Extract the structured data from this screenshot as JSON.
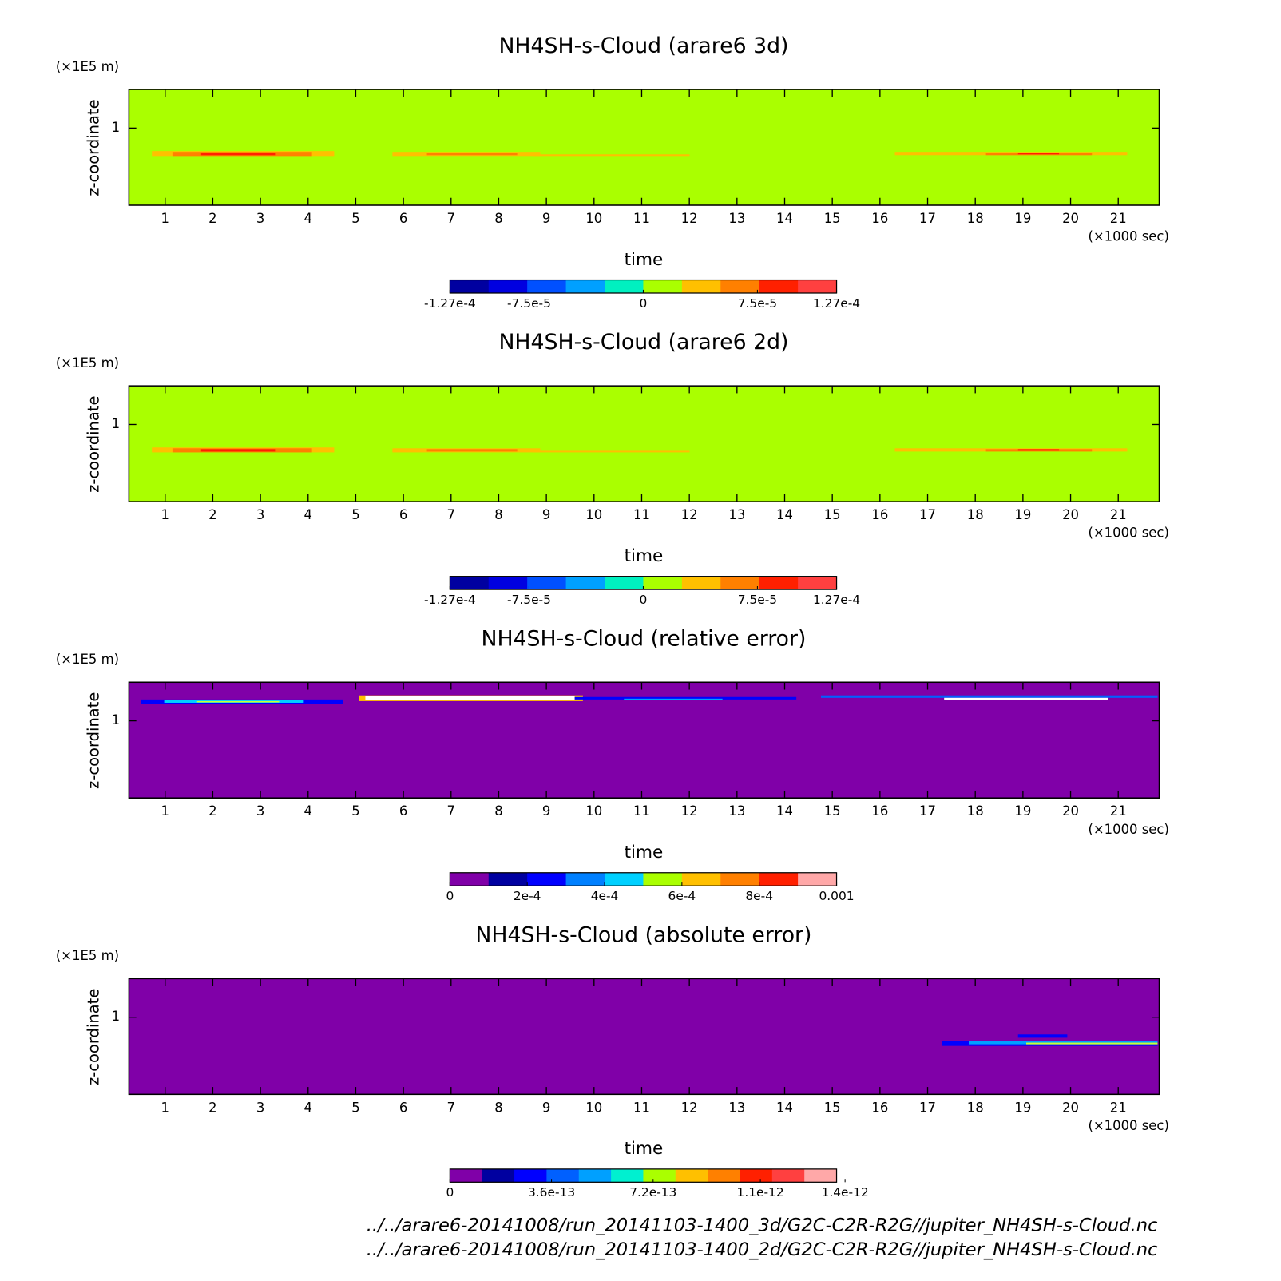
{
  "chart_data": [
    {
      "type": "contour",
      "title": "NH4SH-s-Cloud (arare6 3d)",
      "xlabel": "time",
      "xunit": "(×1000 sec)",
      "ylabel": "z-coordinate",
      "yunit": "(×1E5 m)",
      "xlim": [
        0.24,
        21.86
      ],
      "xticks": [
        1,
        2,
        3,
        4,
        5,
        6,
        7,
        8,
        9,
        10,
        11,
        12,
        13,
        14,
        15,
        16,
        17,
        18,
        19,
        20,
        21
      ],
      "ylim": [
        0.7,
        1.15
      ],
      "yticks": [
        1
      ],
      "field_color": "#aaff00",
      "colorbar": {
        "lim": [
          -0.000127,
          0.000127
        ],
        "ticks": [
          {
            "value": -0.000127,
            "label": "-1.27e-4"
          },
          {
            "value": -7.5e-05,
            "label": "-7.5e-5"
          },
          0,
          {
            "value": 7.5e-05,
            "label": "7.5e-5"
          },
          {
            "value": 0.000127,
            "label": "1.27e-4"
          }
        ],
        "colors": [
          "#0000a0",
          "#0000e0",
          "#0050ff",
          "#00a0ff",
          "#00f0c0",
          "#aaff00",
          "#ffc000",
          "#ff8000",
          "#ff2000",
          "#ff4040"
        ]
      }
    },
    {
      "type": "contour",
      "title": "NH4SH-s-Cloud (arare6 2d)",
      "xlabel": "time",
      "xunit": "(×1000 sec)",
      "ylabel": "z-coordinate",
      "yunit": "(×1E5 m)",
      "xlim": [
        0.24,
        21.86
      ],
      "xticks": [
        1,
        2,
        3,
        4,
        5,
        6,
        7,
        8,
        9,
        10,
        11,
        12,
        13,
        14,
        15,
        16,
        17,
        18,
        19,
        20,
        21
      ],
      "ylim": [
        0.7,
        1.15
      ],
      "yticks": [
        1
      ],
      "field_color": "#aaff00",
      "colorbar": {
        "lim": [
          -0.000127,
          0.000127
        ],
        "ticks": [
          {
            "value": -0.000127,
            "label": "-1.27e-4"
          },
          {
            "value": -7.5e-05,
            "label": "-7.5e-5"
          },
          0,
          {
            "value": 7.5e-05,
            "label": "7.5e-5"
          },
          {
            "value": 0.000127,
            "label": "1.27e-4"
          }
        ],
        "colors": [
          "#0000a0",
          "#0000e0",
          "#0050ff",
          "#00a0ff",
          "#00f0c0",
          "#aaff00",
          "#ffc000",
          "#ff8000",
          "#ff2000",
          "#ff4040"
        ]
      }
    },
    {
      "type": "contour",
      "title": "NH4SH-s-Cloud (relative error)",
      "xlabel": "time",
      "xunit": "(×1000 sec)",
      "ylabel": "z-coordinate",
      "yunit": "(×1E5 m)",
      "xlim": [
        0.24,
        21.86
      ],
      "xticks": [
        1,
        2,
        3,
        4,
        5,
        6,
        7,
        8,
        9,
        10,
        11,
        12,
        13,
        14,
        15,
        16,
        17,
        18,
        19,
        20,
        21
      ],
      "ylim": [
        0.7,
        1.15
      ],
      "yticks": [
        1
      ],
      "field_color": "#8000a8",
      "colorbar": {
        "lim": [
          0,
          0.001
        ],
        "ticks": [
          0,
          {
            "value": 0.0002,
            "label": "2e-4"
          },
          {
            "value": 0.0004,
            "label": "4e-4"
          },
          {
            "value": 0.0006,
            "label": "6e-4"
          },
          {
            "value": 0.0008,
            "label": "8e-4"
          },
          0.001
        ],
        "colors": [
          "#8000a8",
          "#0000a0",
          "#0000ff",
          "#0080ff",
          "#00d0ff",
          "#aaff00",
          "#ffc000",
          "#ff8000",
          "#ff2000",
          "#ffa8a8"
        ]
      }
    },
    {
      "type": "contour",
      "title": "NH4SH-s-Cloud (absolute error)",
      "xlabel": "time",
      "xunit": "(×1000 sec)",
      "ylabel": "z-coordinate",
      "yunit": "(×1E5 m)",
      "xlim": [
        0.24,
        21.86
      ],
      "xticks": [
        1,
        2,
        3,
        4,
        5,
        6,
        7,
        8,
        9,
        10,
        11,
        12,
        13,
        14,
        15,
        16,
        17,
        18,
        19,
        20,
        21
      ],
      "ylim": [
        0.7,
        1.15
      ],
      "yticks": [
        1
      ],
      "field_color": "#8000a8",
      "colorbar": {
        "lim": [
          0,
          1.37e-12
        ],
        "ticks": [
          0,
          {
            "value": 3.6e-13,
            "label": "3.6e-13"
          },
          {
            "value": 7.2e-13,
            "label": "7.2e-13"
          },
          {
            "value": 1.1e-12,
            "label": "1.1e-12"
          },
          {
            "value": 1.4e-12,
            "label": "1.4e-12"
          }
        ],
        "colors": [
          "#8000a8",
          "#0000a0",
          "#0000ff",
          "#0060ff",
          "#00a0ff",
          "#00f0d0",
          "#aaff00",
          "#ffc000",
          "#ff8000",
          "#ff2000",
          "#ff4040",
          "#ffa8a8"
        ]
      }
    }
  ],
  "files": [
    "../../arare6-20141008/run_20141103-1400_3d/G2C-C2R-R2G//jupiter_NH4SH-s-Cloud.nc",
    "../../arare6-20141008/run_20141103-1400_2d/G2C-C2R-R2G//jupiter_NH4SH-s-Cloud.nc"
  ]
}
